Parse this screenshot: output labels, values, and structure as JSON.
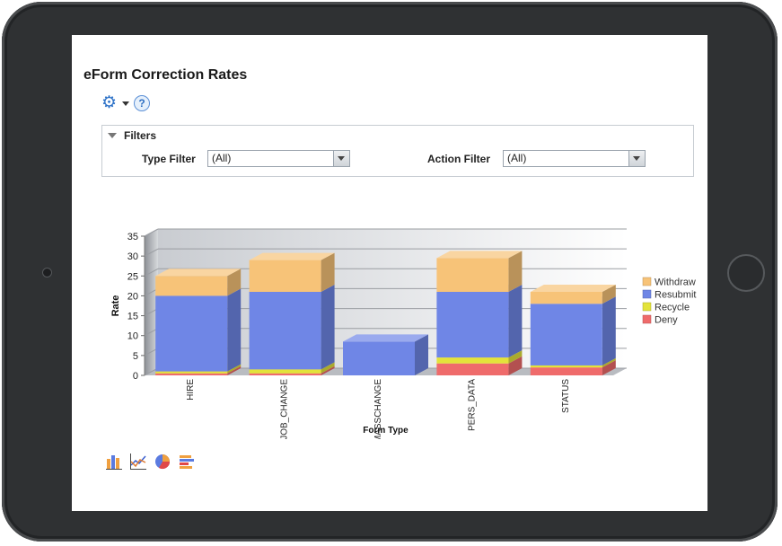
{
  "page": {
    "title": "eForm Correction Rates",
    "help_label": "?"
  },
  "filters": {
    "header": "Filters",
    "type_filter": {
      "label": "Type Filter",
      "value": "(All)"
    },
    "action_filter": {
      "label": "Action Filter",
      "value": "(All)"
    }
  },
  "chart_data": {
    "type": "bar",
    "stacked": true,
    "three_d": true,
    "xlabel": "Form Type",
    "ylabel": "Rate",
    "ylim": [
      0,
      35
    ],
    "yticks": [
      0,
      5,
      10,
      15,
      20,
      25,
      30,
      35
    ],
    "categories": [
      "HIRE",
      "JOB_CHANGE",
      "MASSCHANGE",
      "PERS_DATA",
      "STATUS"
    ],
    "series": [
      {
        "name": "Deny",
        "color": "#ef6b6b",
        "values": [
          0.5,
          0.5,
          0,
          3,
          2
        ]
      },
      {
        "name": "Recycle",
        "color": "#e3e33a",
        "values": [
          0.5,
          1,
          0,
          1.5,
          0.5
        ]
      },
      {
        "name": "Resubmit",
        "color": "#6f86e6",
        "values": [
          19,
          19.5,
          8.5,
          16.5,
          15.5
        ]
      },
      {
        "name": "Withdraw",
        "color": "#f7c378",
        "values": [
          5,
          8,
          0,
          8.5,
          3
        ]
      }
    ],
    "legend_order": [
      "Withdraw",
      "Resubmit",
      "Recycle",
      "Deny"
    ],
    "legend_position": "right"
  },
  "chart_type_icons": [
    "bar-chart-icon",
    "line-chart-icon",
    "pie-chart-icon",
    "horizontal-bar-chart-icon"
  ]
}
